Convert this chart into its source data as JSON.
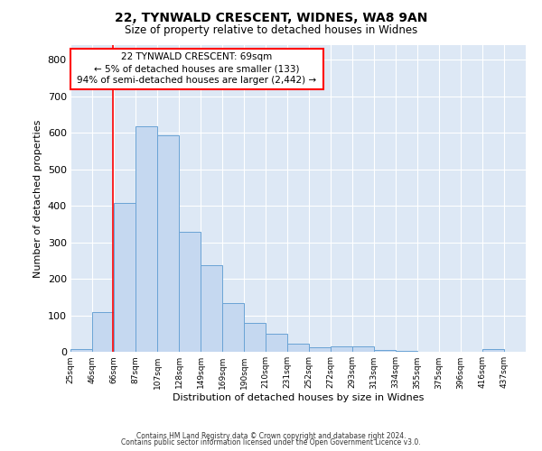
{
  "title_line1": "22, TYNWALD CRESCENT, WIDNES, WA8 9AN",
  "title_line2": "Size of property relative to detached houses in Widnes",
  "xlabel": "Distribution of detached houses by size in Widnes",
  "ylabel": "Number of detached properties",
  "footer_line1": "Contains HM Land Registry data © Crown copyright and database right 2024.",
  "footer_line2": "Contains public sector information licensed under the Open Government Licence v3.0.",
  "bar_labels": [
    "25sqm",
    "46sqm",
    "66sqm",
    "87sqm",
    "107sqm",
    "128sqm",
    "149sqm",
    "169sqm",
    "190sqm",
    "210sqm",
    "231sqm",
    "252sqm",
    "272sqm",
    "293sqm",
    "313sqm",
    "334sqm",
    "355sqm",
    "375sqm",
    "396sqm",
    "416sqm",
    "437sqm"
  ],
  "bar_values": [
    7,
    108,
    407,
    617,
    592,
    329,
    237,
    133,
    78,
    50,
    22,
    13,
    16,
    15,
    5,
    3,
    0,
    0,
    0,
    8,
    0
  ],
  "bar_color": "#c5d8f0",
  "bar_edge_color": "#6aa3d5",
  "bg_color": "#dde8f5",
  "ylim": [
    0,
    840
  ],
  "yticks": [
    0,
    100,
    200,
    300,
    400,
    500,
    600,
    700,
    800
  ],
  "grid_color": "#ffffff",
  "annotation_text_line1": "22 TYNWALD CRESCENT: 69sqm",
  "annotation_text_line2": "← 5% of detached houses are smaller (133)",
  "annotation_text_line3": "94% of semi-detached houses are larger (2,442) →",
  "red_line_label": "66sqm",
  "bin_width": 21
}
